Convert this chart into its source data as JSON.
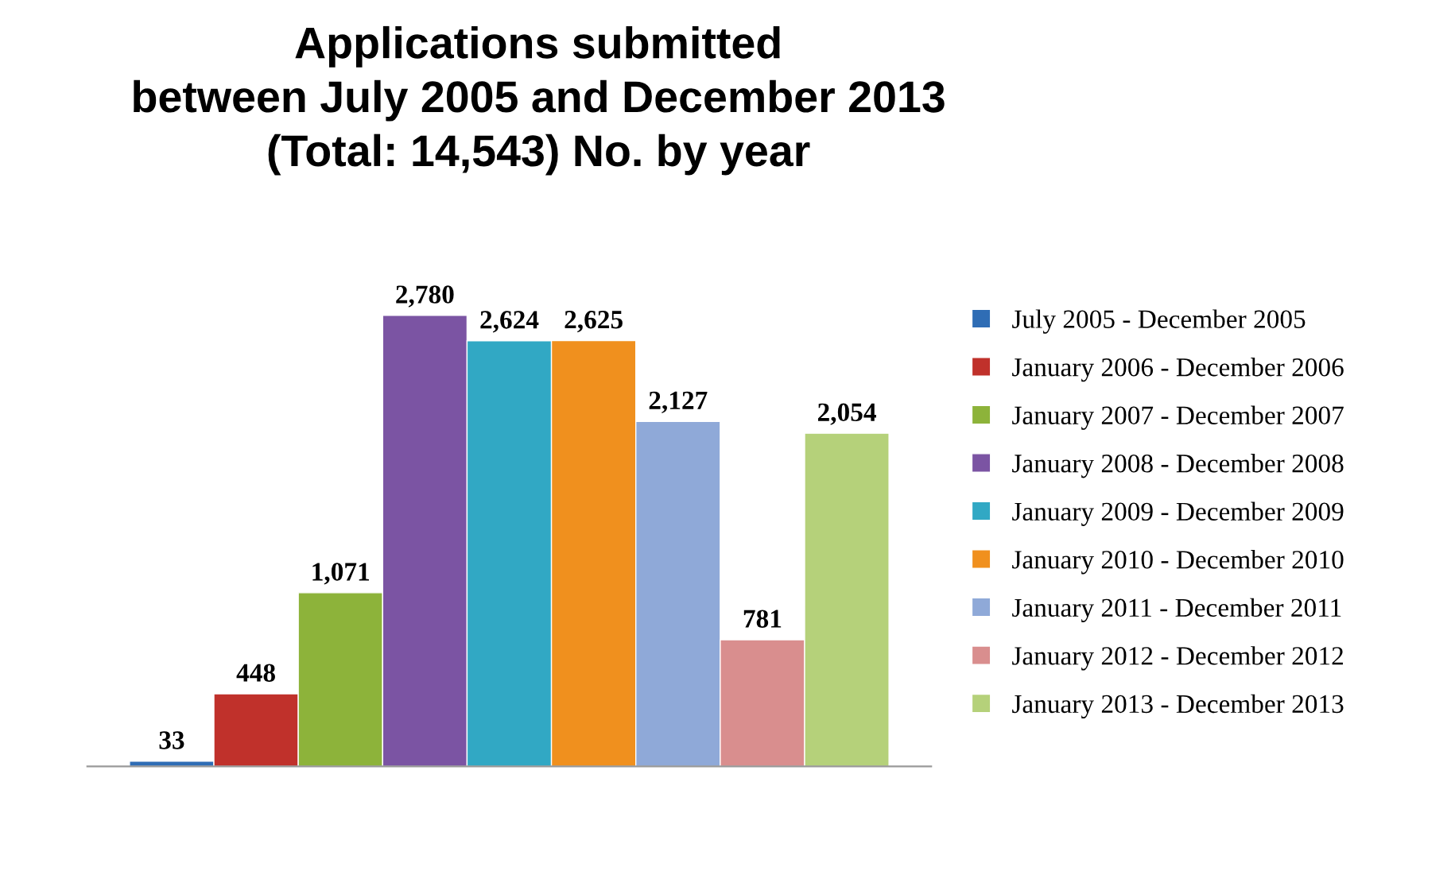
{
  "chart_data": {
    "type": "bar",
    "title": "Applications submitted\nbetween July 2005 and December 2013\n(Total: 14,543) No. by year",
    "categories": [
      null
    ],
    "series": [
      {
        "name": "July 2005 - December 2005",
        "color": "#2f6db5",
        "values": [
          33
        ],
        "value_labels": [
          "33"
        ]
      },
      {
        "name": "January 2006 - December 2006",
        "color": "#c0312b",
        "values": [
          448
        ],
        "value_labels": [
          "448"
        ]
      },
      {
        "name": "January 2007 - December 2007",
        "color": "#8db33a",
        "values": [
          1071
        ],
        "value_labels": [
          "1,071"
        ]
      },
      {
        "name": "January 2008 - December 2008",
        "color": "#7b54a3",
        "values": [
          2780
        ],
        "value_labels": [
          "2,780"
        ]
      },
      {
        "name": "January 2009 - December 2009",
        "color": "#31a8c4",
        "values": [
          2624
        ],
        "value_labels": [
          "2,624"
        ]
      },
      {
        "name": "January 2010 - December 2010",
        "color": "#f0901e",
        "values": [
          2625
        ],
        "value_labels": [
          "2,625"
        ]
      },
      {
        "name": "January 2011 - December 2011",
        "color": "#8fa9d8",
        "values": [
          2127
        ],
        "value_labels": [
          "2,127"
        ]
      },
      {
        "name": "January 2012 - December 2012",
        "color": "#d98e8e",
        "values": [
          781
        ],
        "value_labels": [
          "781"
        ]
      },
      {
        "name": "January 2013 - December 2013",
        "color": "#b5d17a",
        "values": [
          2054
        ],
        "value_labels": [
          "2,054"
        ]
      }
    ],
    "legend": "right",
    "grid": false
  }
}
